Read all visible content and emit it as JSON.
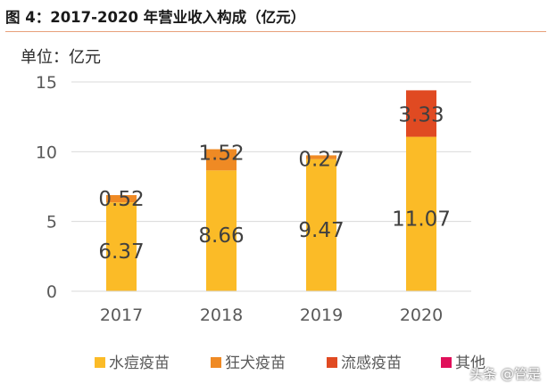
{
  "figure": {
    "title": "图 4：2017-2020 年营业收入构成（亿元）",
    "unit_label": "单位：亿元",
    "watermark": "头条 @管是"
  },
  "chart_data": {
    "type": "bar",
    "stacked": true,
    "categories": [
      "2017",
      "2018",
      "2019",
      "2020"
    ],
    "series": [
      {
        "name": "水痘疫苗",
        "color": "#fbbb27",
        "values": [
          6.37,
          8.66,
          9.47,
          11.07
        ]
      },
      {
        "name": "狂犬疫苗",
        "color": "#ef8a24",
        "values": [
          0.52,
          1.52,
          0.27,
          0
        ]
      },
      {
        "name": "流感疫苗",
        "color": "#e04a22",
        "values": [
          0,
          0,
          0,
          3.33
        ]
      },
      {
        "name": "其他",
        "color": "#e0105a",
        "values": [
          0,
          0,
          0,
          0
        ]
      }
    ],
    "data_labels": [
      {
        "series": 0,
        "labels": [
          "6.37",
          "8.66",
          "9.47",
          "11.07"
        ]
      },
      {
        "series": 1,
        "labels": [
          "0.52",
          "1.52",
          "0.27",
          ""
        ]
      },
      {
        "series": 2,
        "labels": [
          "",
          "",
          "",
          "3.33"
        ]
      }
    ],
    "y_ticks": [
      0,
      5,
      10,
      15
    ],
    "ylim": [
      0,
      15
    ],
    "grid": true,
    "legend_position": "bottom"
  }
}
